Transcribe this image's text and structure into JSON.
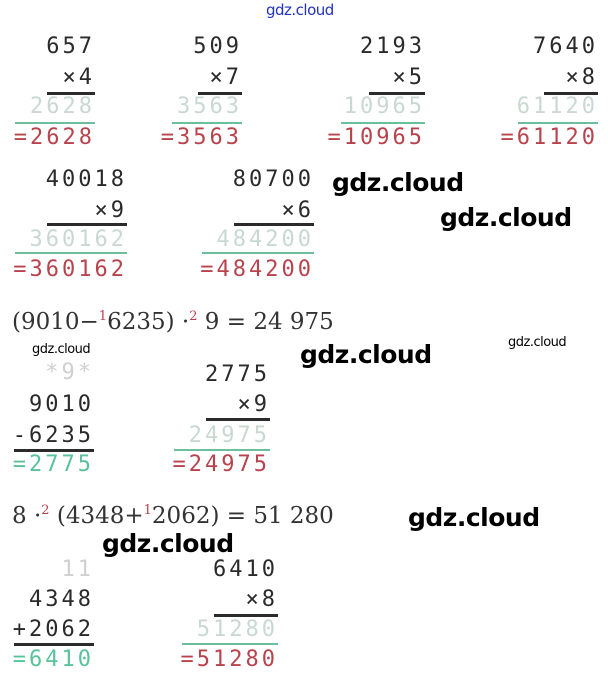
{
  "watermark": "gdz.cloud",
  "colors": {
    "result_red": "#b8434d",
    "result_green": "#5ac29a",
    "faint": "#c9d9d2",
    "watermark_top": "#2233bb"
  },
  "blocks": [
    {
      "lines": [
        {
          "t": "657",
          "s": "dark"
        },
        {
          "t": "×4",
          "s": "dark"
        },
        {
          "bar": "black"
        },
        {
          "t": "2628",
          "s": "faint"
        },
        {
          "bar": "green"
        },
        {
          "t": "=2628",
          "s": "red"
        }
      ]
    },
    {
      "lines": [
        {
          "t": "509",
          "s": "dark"
        },
        {
          "t": "×7",
          "s": "dark"
        },
        {
          "bar": "black"
        },
        {
          "t": "3563",
          "s": "faint"
        },
        {
          "bar": "green"
        },
        {
          "t": "=3563",
          "s": "red"
        }
      ]
    },
    {
      "lines": [
        {
          "t": "2193",
          "s": "dark"
        },
        {
          "t": "×5",
          "s": "dark"
        },
        {
          "bar": "black"
        },
        {
          "t": "10965",
          "s": "faint"
        },
        {
          "bar": "green"
        },
        {
          "t": "=10965",
          "s": "red"
        }
      ]
    },
    {
      "lines": [
        {
          "t": "7640",
          "s": "dark"
        },
        {
          "t": "×8",
          "s": "dark"
        },
        {
          "bar": "black"
        },
        {
          "t": "61120",
          "s": "faint"
        },
        {
          "bar": "green"
        },
        {
          "t": "=61120",
          "s": "red"
        }
      ]
    },
    {
      "lines": [
        {
          "t": "40018",
          "s": "dark"
        },
        {
          "t": "×9",
          "s": "dark"
        },
        {
          "bar": "black"
        },
        {
          "t": "360162",
          "s": "faint"
        },
        {
          "bar": "green"
        },
        {
          "t": "=360162",
          "s": "red"
        }
      ]
    },
    {
      "lines": [
        {
          "t": "80700",
          "s": "dark"
        },
        {
          "t": "×6",
          "s": "dark"
        },
        {
          "bar": "black"
        },
        {
          "t": "484200",
          "s": "faint"
        },
        {
          "bar": "green"
        },
        {
          "t": "=484200",
          "s": "red"
        }
      ]
    },
    {
      "lines": [
        {
          "t": "*9*",
          "s": "carry"
        },
        {
          "t": "9010",
          "s": "dark"
        },
        {
          "t": "-6235",
          "s": "dark"
        },
        {
          "bar": "black"
        },
        {
          "t": "=2775",
          "s": "green"
        }
      ]
    },
    {
      "lines": [
        {
          "t": "2775",
          "s": "dark"
        },
        {
          "t": "×9",
          "s": "dark"
        },
        {
          "bar": "black"
        },
        {
          "t": "24975",
          "s": "faint"
        },
        {
          "bar": "green"
        },
        {
          "t": "=24975",
          "s": "red"
        }
      ]
    },
    {
      "lines": [
        {
          "t": "11",
          "s": "carry"
        },
        {
          "t": "4348",
          "s": "dark"
        },
        {
          "t": "+2062",
          "s": "dark"
        },
        {
          "bar": "black"
        },
        {
          "t": "=6410",
          "s": "green"
        }
      ]
    },
    {
      "lines": [
        {
          "t": "6410",
          "s": "dark"
        },
        {
          "t": "×8",
          "s": "dark"
        },
        {
          "bar": "black"
        },
        {
          "t": "51280",
          "s": "faint"
        },
        {
          "bar": "green"
        },
        {
          "t": "=51280",
          "s": "red"
        }
      ]
    }
  ],
  "expressions": [
    {
      "a": "(9010−",
      "s1": "1",
      "b": "6235) ·",
      "s2": "2",
      "c": " 9 = 24 975"
    },
    {
      "a": "8 ·",
      "s1": "2",
      "b": " (4348+",
      "s2": "1",
      "c": "2062) = 51 280"
    }
  ]
}
